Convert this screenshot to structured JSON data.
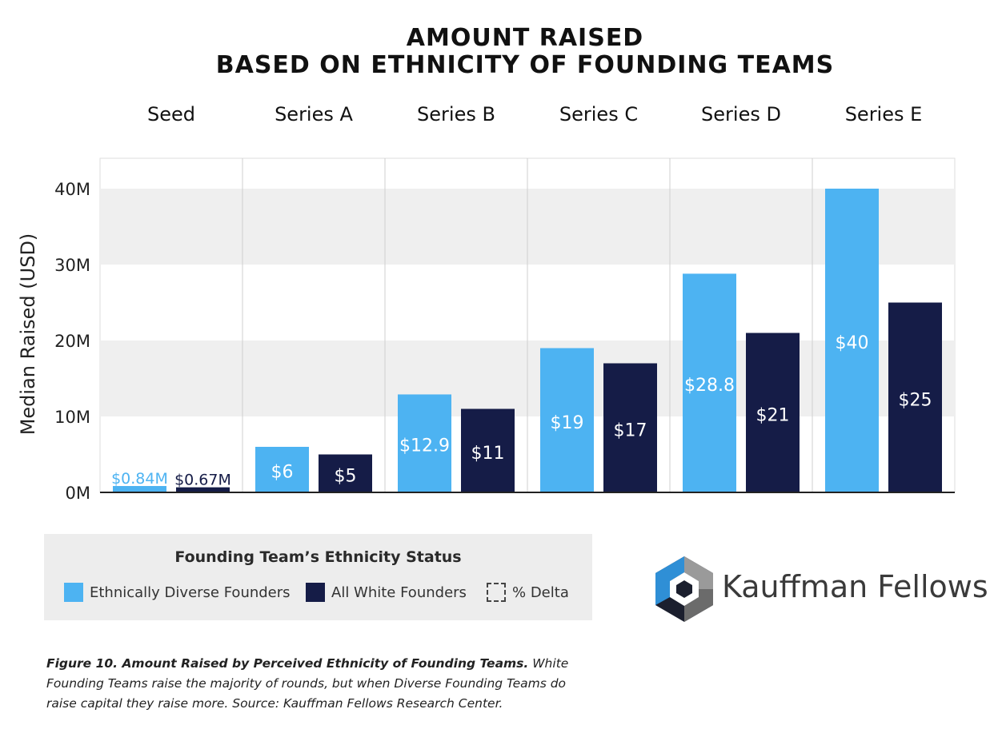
{
  "chart_data": {
    "type": "bar",
    "title_line1": "AMOUNT RAISED",
    "title_line2": "BASED ON ETHNICITY OF FOUNDING TEAMS",
    "ylabel": "Median Raised (USD)",
    "ylim": [
      0,
      44
    ],
    "yticks": [
      0,
      10,
      20,
      30,
      40
    ],
    "ytick_labels": [
      "0M",
      "10M",
      "20M",
      "30M",
      "40M"
    ],
    "categories": [
      "Seed",
      "Series A",
      "Series B",
      "Series C",
      "Series D",
      "Series E"
    ],
    "series": [
      {
        "name": "Ethnically Diverse Founders",
        "color": "#4db3f2",
        "values": [
          0.84,
          6,
          12.9,
          19,
          28.8,
          40
        ],
        "labels": [
          "$0.84M",
          "$6",
          "$12.9",
          "$19",
          "$28.8",
          "$40"
        ]
      },
      {
        "name": "All White Founders",
        "color": "#151c47",
        "values": [
          0.67,
          5,
          11,
          17,
          21,
          25
        ],
        "labels": [
          "$0.67M",
          "$5",
          "$11",
          "$17",
          "$21",
          "$25"
        ]
      }
    ],
    "grid": "alternating horizontal bands",
    "legend": "bottom-left"
  },
  "legend": {
    "title": "Founding Team’s Ethnicity Status",
    "items": [
      "Ethnically Diverse Founders",
      "All White Founders",
      "% Delta"
    ]
  },
  "logo": {
    "text": "Kauffman Fellows",
    "colors": {
      "blue": "#2f8fd6",
      "dark": "#1b1f2e",
      "gray": "#9a9a9a"
    }
  },
  "caption": {
    "bold": "Figure 10. Amount Raised by Perceived Ethnicity of Founding Teams.",
    "rest": "White Founding Teams raise the majority of rounds, but when Diverse Founding Teams do raise capital they raise more. Source: Kauffman Fellows Research Center."
  }
}
